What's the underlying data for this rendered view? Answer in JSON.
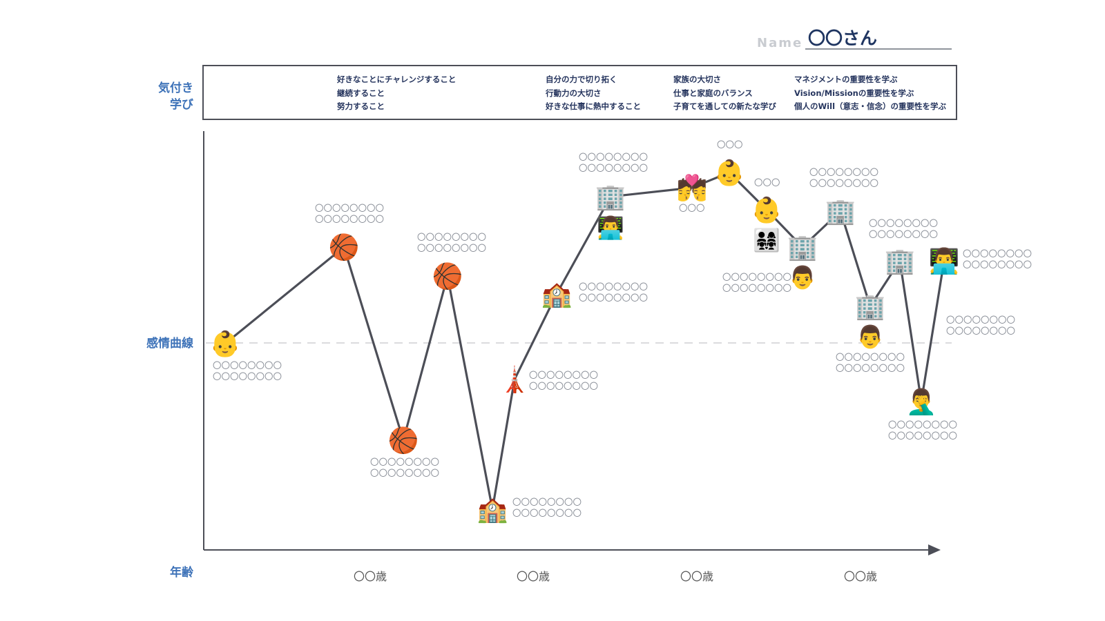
{
  "header": {
    "name_label": "Name",
    "name_value": "〇〇さん"
  },
  "labels": {
    "insights": "気付き\n学び",
    "curve": "感情曲線",
    "age": "年齢"
  },
  "insights": [
    {
      "lines": [
        "好きなことにチャレンジすること",
        "継続すること",
        "努力すること"
      ]
    },
    {
      "lines": [
        "自分の力で切り拓く",
        "行動力の大切さ",
        "好きな仕事に熱中すること"
      ]
    },
    {
      "lines": [
        "家族の大切さ",
        "仕事と家庭のバランス",
        "子育てを通しての新たな学び"
      ]
    },
    {
      "lines": [
        "マネジメントの重要性を学ぶ",
        "Vision/Missionの重要性を学ぶ",
        "個人のWill（意志・信念）の重要性を学ぶ"
      ]
    }
  ],
  "ages": [
    "〇〇歳",
    "〇〇歳",
    "〇〇歳",
    "〇〇歳"
  ],
  "colors": {
    "accent": "#3d72b8",
    "line": "#4c4e57",
    "baseline": "#cfcfd4",
    "note": "#8a8f98"
  },
  "chart_data": {
    "type": "line",
    "title": "",
    "xlabel": "年齢",
    "ylabel": "感情曲線",
    "points": [
      {
        "icon": "👶",
        "icon_name": "baby-icon",
        "note": [
          "〇〇〇〇〇〇〇〇",
          "〇〇〇〇〇〇〇〇"
        ]
      },
      {
        "icon": "🏀",
        "icon_name": "basketball-icon",
        "note": [
          "〇〇〇〇〇〇〇〇",
          "〇〇〇〇〇〇〇〇"
        ]
      },
      {
        "icon": "🏀",
        "icon_name": "basketball-icon",
        "note": [
          "〇〇〇〇〇〇〇〇",
          "〇〇〇〇〇〇〇〇"
        ]
      },
      {
        "icon": "🏀",
        "icon_name": "basketball-icon",
        "note": [
          "〇〇〇〇〇〇〇〇",
          "〇〇〇〇〇〇〇〇"
        ]
      },
      {
        "icon": "🏫",
        "icon_name": "school-icon",
        "note": [
          "〇〇〇〇〇〇〇〇",
          "〇〇〇〇〇〇〇〇"
        ]
      },
      {
        "icon": "🗼",
        "icon_name": "tokyo-tower-icon",
        "note": [
          "〇〇〇〇〇〇〇〇",
          "〇〇〇〇〇〇〇〇"
        ]
      },
      {
        "icon": "🏫",
        "icon_name": "school-icon",
        "note": [
          "〇〇〇〇〇〇〇〇",
          "〇〇〇〇〇〇〇〇"
        ]
      },
      {
        "icon": "🏢",
        "icon_name": "office-building-icon",
        "icon2": "👨‍💻",
        "icon2_name": "man-at-laptop-icon",
        "note": [
          "〇〇〇〇〇〇〇〇",
          "〇〇〇〇〇〇〇〇"
        ]
      },
      {
        "icon": "💏",
        "icon_name": "couple-kiss-icon",
        "note": [
          "〇〇〇"
        ]
      },
      {
        "icon": "👶",
        "icon_name": "baby-icon",
        "note": [
          "〇〇〇"
        ]
      },
      {
        "icon": "👶",
        "icon_name": "baby-icon",
        "icon2": "👨‍👩‍👧‍👧",
        "icon2_name": "family-icon",
        "note": [
          "〇〇〇"
        ]
      },
      {
        "icon": "🏢",
        "icon_name": "office-building-icon",
        "icon2": "👨",
        "icon2_name": "man-icon",
        "note": [
          "〇〇〇〇〇〇〇〇",
          "〇〇〇〇〇〇〇〇"
        ]
      },
      {
        "icon": "🏢",
        "icon_name": "office-building-icon",
        "note": [
          "〇〇〇〇〇〇〇〇",
          "〇〇〇〇〇〇〇〇"
        ]
      },
      {
        "icon": "🏢",
        "icon_name": "office-building-icon",
        "icon2": "👨",
        "icon2_name": "man-icon",
        "note": [
          "〇〇〇〇〇〇〇〇",
          "〇〇〇〇〇〇〇〇"
        ]
      },
      {
        "icon": "🏢",
        "icon_name": "office-building-icon",
        "note": [
          "〇〇〇〇〇〇〇〇",
          "〇〇〇〇〇〇〇〇"
        ]
      },
      {
        "icon": "🤦‍♂️",
        "icon_name": "facepalm-man-icon",
        "note": [
          "〇〇〇〇〇〇〇〇",
          "〇〇〇〇〇〇〇〇"
        ]
      },
      {
        "icon": "👨‍💻",
        "icon_name": "man-at-laptop-icon",
        "note": [
          "〇〇〇〇〇〇〇〇",
          "〇〇〇〇〇〇〇〇"
        ]
      }
    ],
    "extra_notes": [
      {
        "attach": 15,
        "lines": [
          "〇〇〇〇〇〇〇〇",
          "〇〇〇〇〇〇〇〇"
        ]
      }
    ]
  }
}
